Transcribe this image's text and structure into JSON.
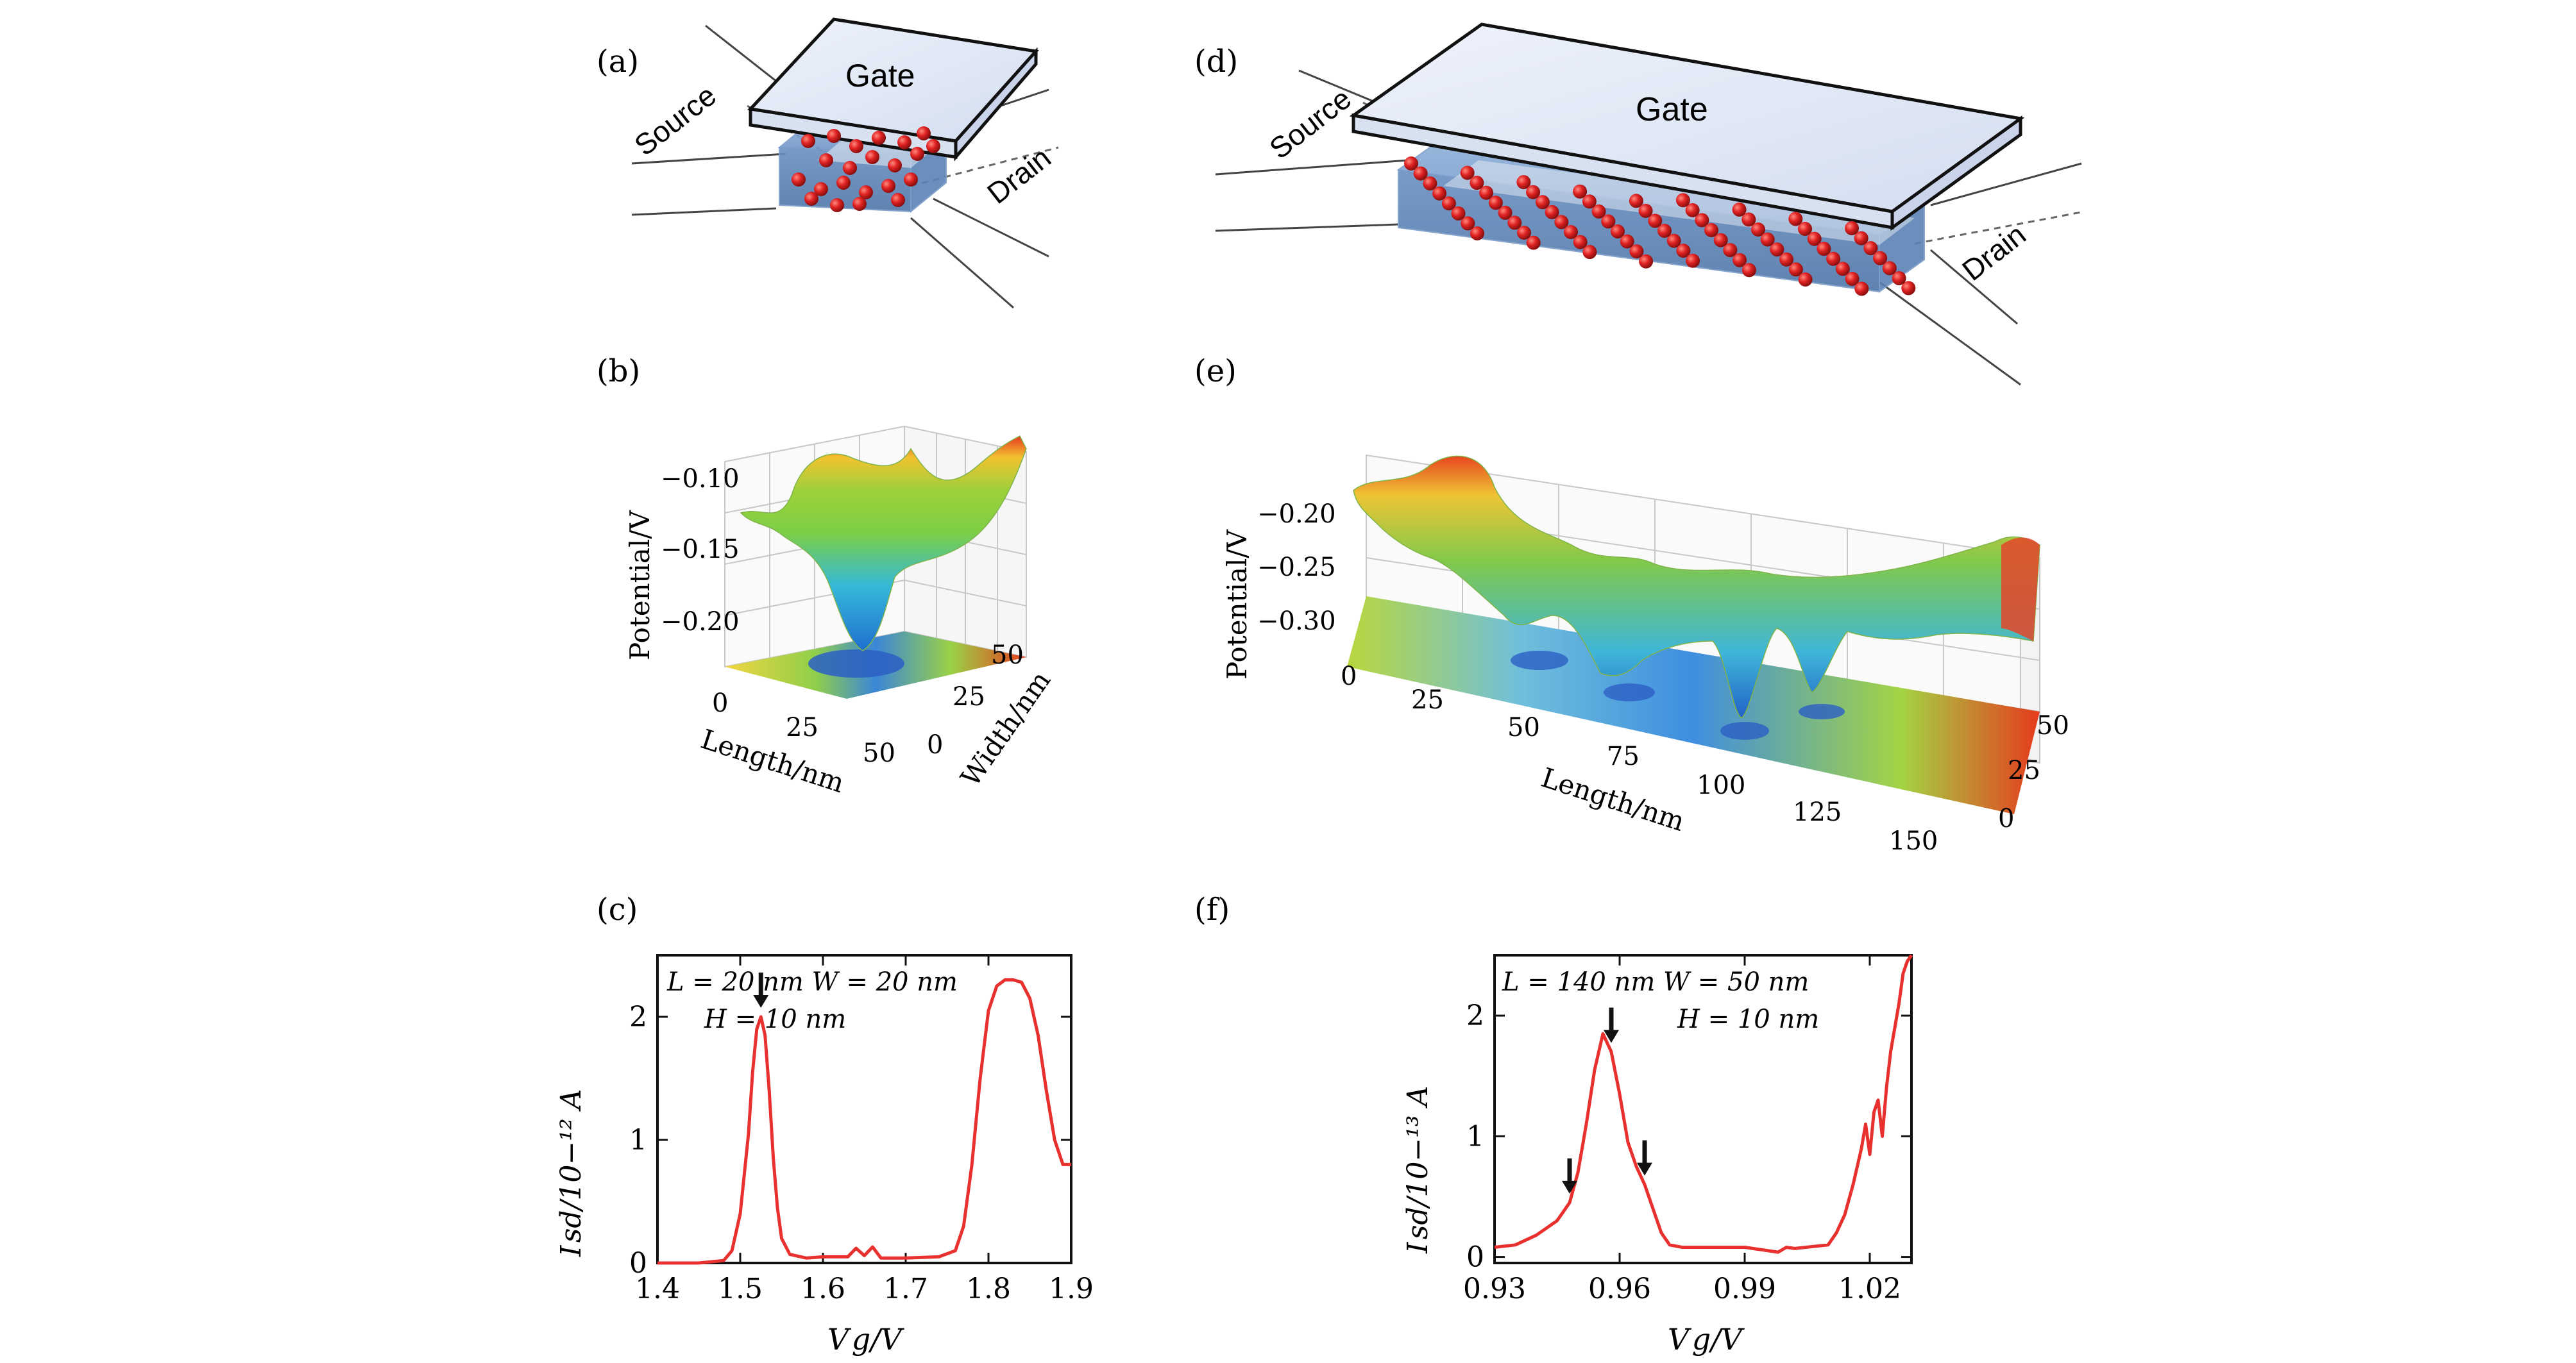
{
  "panels": {
    "a": {
      "label": "(a)",
      "gate": "Gate",
      "source": "Source",
      "drain": "Drain"
    },
    "b": {
      "label": "(b)",
      "zlabel": "Potential/V",
      "zticks": [
        "−0.10",
        "−0.15",
        "−0.20"
      ],
      "xlabel": "Length/nm",
      "xticks": [
        "0",
        "25",
        "50"
      ],
      "ylabel": "Width/nm",
      "yticks": [
        "0",
        "25",
        "50"
      ]
    },
    "c": {
      "label": "(c)",
      "ann1": "L = 20 nm  W = 20 nm",
      "ann2": "H = 10 nm",
      "xlabel": "V g/V",
      "ylabel": "I sd/10−¹² A"
    },
    "d": {
      "label": "(d)",
      "gate": "Gate",
      "source": "Source",
      "drain": "Drain"
    },
    "e": {
      "label": "(e)",
      "zlabel": "Potential/V",
      "zticks": [
        "−0.20",
        "−0.25",
        "−0.30"
      ],
      "xlabel": "Length/nm",
      "xticks": [
        "0",
        "25",
        "50",
        "75",
        "100",
        "125",
        "150"
      ],
      "yticks": [
        "0",
        "25",
        "50"
      ]
    },
    "f": {
      "label": "(f)",
      "ann1": "L = 140 nm  W = 50 nm",
      "ann2": "H = 10 nm",
      "xlabel": "V g/V",
      "ylabel": "I sd/10−¹³ A"
    }
  },
  "colors": {
    "curve": "#e8312f",
    "gate_fill": "#dde6f5",
    "channel": "#5b83b5",
    "dot": "#d42020"
  },
  "chart_data": [
    {
      "type": "line",
      "panel": "(c)",
      "xlabel": "Vg/V",
      "ylabel": "Isd/10−12 A",
      "xlim": [
        1.4,
        1.9
      ],
      "ylim": [
        0,
        2.5
      ],
      "xticks": [
        "1.4",
        "1.5",
        "1.6",
        "1.7",
        "1.8",
        "1.9"
      ],
      "yticks": [
        "0",
        "1",
        "2"
      ],
      "x": [
        1.4,
        1.45,
        1.48,
        1.49,
        1.5,
        1.51,
        1.515,
        1.52,
        1.525,
        1.53,
        1.535,
        1.54,
        1.545,
        1.55,
        1.56,
        1.58,
        1.6,
        1.63,
        1.64,
        1.65,
        1.66,
        1.67,
        1.7,
        1.74,
        1.76,
        1.77,
        1.78,
        1.79,
        1.8,
        1.81,
        1.82,
        1.83,
        1.84,
        1.85,
        1.86,
        1.87,
        1.88,
        1.89,
        1.9
      ],
      "values": [
        0.0,
        0.0,
        0.02,
        0.1,
        0.4,
        1.05,
        1.55,
        1.9,
        2.0,
        1.85,
        1.4,
        0.85,
        0.45,
        0.2,
        0.07,
        0.04,
        0.05,
        0.05,
        0.12,
        0.06,
        0.13,
        0.04,
        0.04,
        0.05,
        0.1,
        0.3,
        0.8,
        1.5,
        2.05,
        2.25,
        2.3,
        2.3,
        2.28,
        2.15,
        1.85,
        1.4,
        1.0,
        0.8,
        0.8
      ],
      "annotations": [
        "L = 20 nm  W = 20 nm",
        "H = 10 nm"
      ],
      "arrows_at_x": [
        1.525
      ]
    },
    {
      "type": "line",
      "panel": "(f)",
      "xlabel": "Vg/V",
      "ylabel": "Isd/10−13 A",
      "xlim": [
        0.93,
        1.03
      ],
      "ylim": [
        -0.05,
        2.5
      ],
      "xticks": [
        "0.93",
        "0.96",
        "0.99",
        "1.02"
      ],
      "yticks": [
        "0",
        "1",
        "2"
      ],
      "x": [
        0.93,
        0.935,
        0.94,
        0.945,
        0.948,
        0.95,
        0.952,
        0.954,
        0.956,
        0.958,
        0.96,
        0.962,
        0.964,
        0.966,
        0.968,
        0.97,
        0.972,
        0.975,
        0.98,
        0.99,
        0.998,
        1.0,
        1.002,
        1.01,
        1.012,
        1.014,
        1.016,
        1.018,
        1.019,
        1.02,
        1.021,
        1.022,
        1.023,
        1.024,
        1.025,
        1.026,
        1.027,
        1.028,
        1.029,
        1.03
      ],
      "values": [
        0.08,
        0.1,
        0.18,
        0.3,
        0.45,
        0.7,
        1.1,
        1.55,
        1.85,
        1.7,
        1.35,
        0.95,
        0.75,
        0.6,
        0.4,
        0.2,
        0.1,
        0.08,
        0.08,
        0.08,
        0.04,
        0.08,
        0.07,
        0.1,
        0.2,
        0.35,
        0.6,
        0.9,
        1.1,
        0.85,
        1.2,
        1.3,
        1.0,
        1.4,
        1.7,
        1.9,
        2.1,
        2.35,
        2.45,
        2.5
      ],
      "annotations": [
        "L = 140 nm  W = 50 nm",
        "H = 10 nm"
      ],
      "arrows_at_x": [
        0.948,
        0.958,
        0.966
      ]
    }
  ]
}
